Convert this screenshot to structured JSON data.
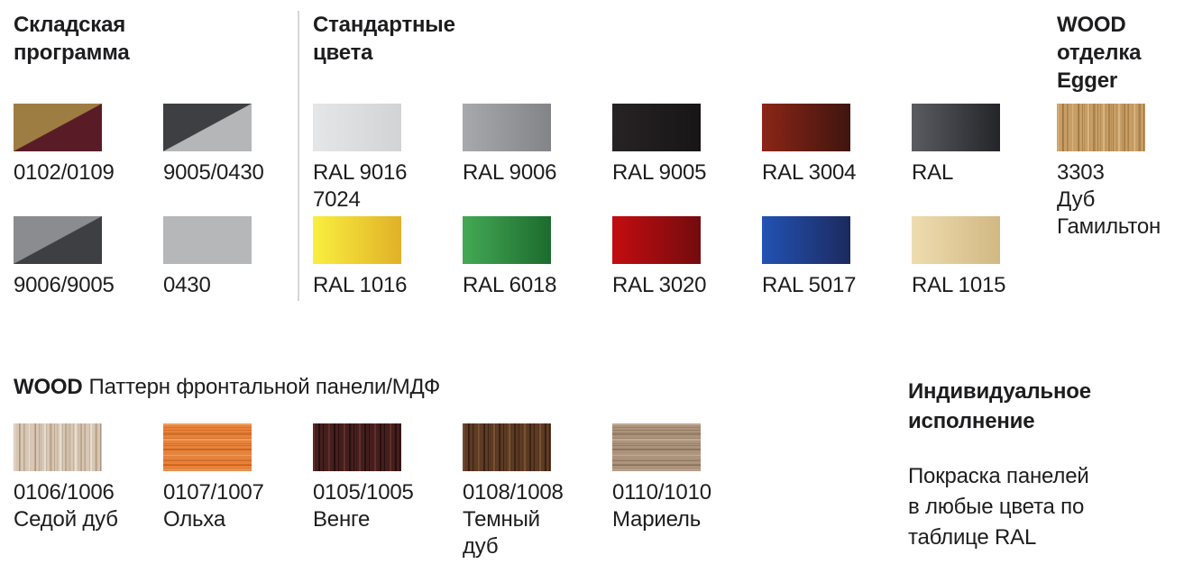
{
  "page": {
    "background": "#ffffff",
    "text_color": "#1d1d1f",
    "divider_color": "#d6d6d6"
  },
  "sections": {
    "warehouse": {
      "title_lines": [
        "Складская",
        "программа"
      ],
      "swatches": [
        {
          "code": "0102/0109",
          "label_lines": [
            "0102/0109"
          ],
          "type": "diagonal",
          "color_a": "#9e7d42",
          "color_b": "#591c27"
        },
        {
          "code": "9005/0430",
          "label_lines": [
            "9005/0430"
          ],
          "type": "diagonal",
          "color_a": "#3e3f42",
          "color_b": "#b5b6b8"
        },
        {
          "code": "9006/9005",
          "label_lines": [
            "9006/9005"
          ],
          "type": "diagonal",
          "color_a": "#8a8c8f",
          "color_b": "#3e3f42"
        },
        {
          "code": "0430",
          "label_lines": [
            "0430"
          ],
          "type": "solid",
          "color": "#b5b7b9"
        }
      ]
    },
    "standard": {
      "title_lines": [
        "Стандартные",
        "цвета"
      ],
      "swatches": [
        {
          "code": "RAL 9016 7024",
          "label_lines": [
            "RAL 9016",
            "7024"
          ],
          "type": "gradient",
          "color_from": "#e4e6e8",
          "color_to": "#d1d3d5"
        },
        {
          "code": "RAL 9006",
          "label_lines": [
            "RAL 9006"
          ],
          "type": "gradient",
          "color_from": "#a7a9ad",
          "color_to": "#828488"
        },
        {
          "code": "RAL 9005",
          "label_lines": [
            "RAL 9005"
          ],
          "type": "gradient",
          "color_from": "#272324",
          "color_to": "#181516"
        },
        {
          "code": "RAL 3004",
          "label_lines": [
            "RAL 3004"
          ],
          "type": "gradient",
          "color_from": "#8c2517",
          "color_to": "#3f150f"
        },
        {
          "code": "RAL",
          "label_lines": [
            "RAL"
          ],
          "type": "gradient",
          "color_from": "#5a5c61",
          "color_to": "#232529"
        },
        {
          "code": "RAL 1016",
          "label_lines": [
            "RAL 1016"
          ],
          "type": "gradient",
          "color_from": "#f9ef3f",
          "color_to": "#e1b128"
        },
        {
          "code": "RAL 6018",
          "label_lines": [
            "RAL 6018"
          ],
          "type": "gradient",
          "color_from": "#44a955",
          "color_to": "#1c6b2d"
        },
        {
          "code": "RAL 3020",
          "label_lines": [
            "RAL 3020"
          ],
          "type": "gradient",
          "color_from": "#c30d10",
          "color_to": "#730b0e"
        },
        {
          "code": "RAL 5017",
          "label_lines": [
            "RAL 5017"
          ],
          "type": "gradient",
          "color_from": "#2252b4",
          "color_to": "#1c2a5e"
        },
        {
          "code": "RAL 1015",
          "label_lines": [
            "RAL 1015"
          ],
          "type": "gradient",
          "color_from": "#eedcb0",
          "color_to": "#d2b882"
        }
      ]
    },
    "wood_egger": {
      "title_lines": [
        "WOOD",
        "отделка",
        "Egger"
      ],
      "swatches": [
        {
          "code": "3303",
          "label_lines": [
            "3303",
            "Дуб",
            "Гамильтон"
          ],
          "type": "wood",
          "base": "#c79e66",
          "light": "#d9b37d",
          "dark": "#aa8147",
          "grain": "vertical"
        }
      ]
    },
    "wood_pattern": {
      "title_bold": "WOOD",
      "title_rest": "Паттерн фронтальной панели/МДФ",
      "swatches": [
        {
          "code": "0106/1006",
          "label_lines": [
            "0106/1006",
            "Седой дуб"
          ],
          "type": "wood",
          "base": "#d8c7b4",
          "light": "#e9ddce",
          "dark": "#bda68e",
          "grain": "vertical"
        },
        {
          "code": "0107/1007",
          "label_lines": [
            "0107/1007",
            "Ольха"
          ],
          "type": "wood",
          "base": "#e8823a",
          "light": "#f39b59",
          "dark": "#d56c25",
          "grain": "horizontal"
        },
        {
          "code": "0105/1005",
          "label_lines": [
            "0105/1005",
            "Венге"
          ],
          "type": "wood",
          "base": "#451f1e",
          "light": "#61302a",
          "dark": "#270f0e",
          "grain": "vertical"
        },
        {
          "code": "0108/1008",
          "label_lines": [
            "0108/1008",
            "Темный",
            "дуб"
          ],
          "type": "wood",
          "base": "#5d3b24",
          "light": "#795232",
          "dark": "#3c2313",
          "grain": "vertical"
        },
        {
          "code": "0110/1010",
          "label_lines": [
            "0110/1010",
            "Мариель"
          ],
          "type": "wood",
          "base": "#ad937b",
          "light": "#c1aa90",
          "dark": "#957c65",
          "grain": "horizontal"
        }
      ]
    },
    "custom": {
      "title_lines": [
        "Индивидуальное",
        "исполнение"
      ],
      "body_lines": [
        "Покраска панелей",
        "в любые цвета по",
        "таблице RAL"
      ]
    }
  }
}
